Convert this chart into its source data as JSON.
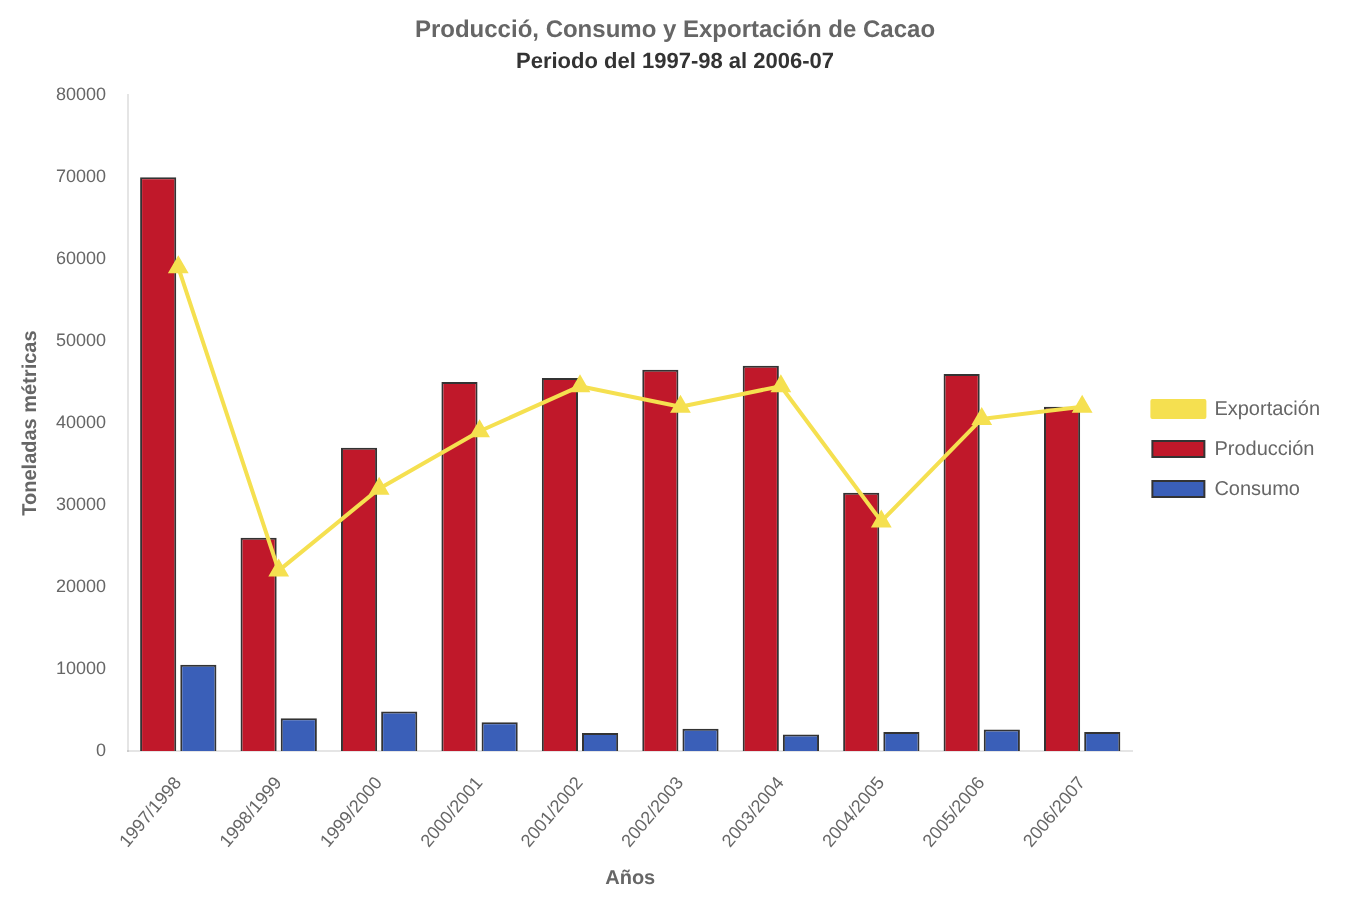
{
  "chart_data": {
    "type": "bar",
    "title": "Producció, Consumo y Exportación de Cacao",
    "subtitle": "Periodo del 1997-98 al 2006-07",
    "xlabel": "Años",
    "ylabel": "Toneladas métricas",
    "categories": [
      "1997/1998",
      "1998/1999",
      "1999/2000",
      "2000/2001",
      "2001/2002",
      "2002/2003",
      "2003/2004",
      "2004/2005",
      "2005/2006",
      "2006/2007"
    ],
    "series": [
      {
        "name": "Producción",
        "color": "#c0182a",
        "values": [
          70000,
          26000,
          37000,
          45000,
          45500,
          46500,
          47000,
          31500,
          46000,
          42000
        ]
      },
      {
        "name": "Consumo",
        "color": "#3a5fb8",
        "values": [
          10500,
          4000,
          4800,
          3500,
          2200,
          2700,
          2000,
          2300,
          2600,
          2300
        ]
      },
      {
        "name": "Exportación",
        "type": "line",
        "color": "#f5e050",
        "values": [
          59000,
          22000,
          32000,
          39000,
          44500,
          42000,
          44500,
          28000,
          40500,
          42000
        ]
      }
    ],
    "ylim": [
      0,
      80000
    ],
    "yticks": [
      0,
      10000,
      20000,
      30000,
      40000,
      50000,
      60000,
      70000,
      80000
    ],
    "grid": false,
    "legend": "right",
    "marker": "triangle"
  }
}
